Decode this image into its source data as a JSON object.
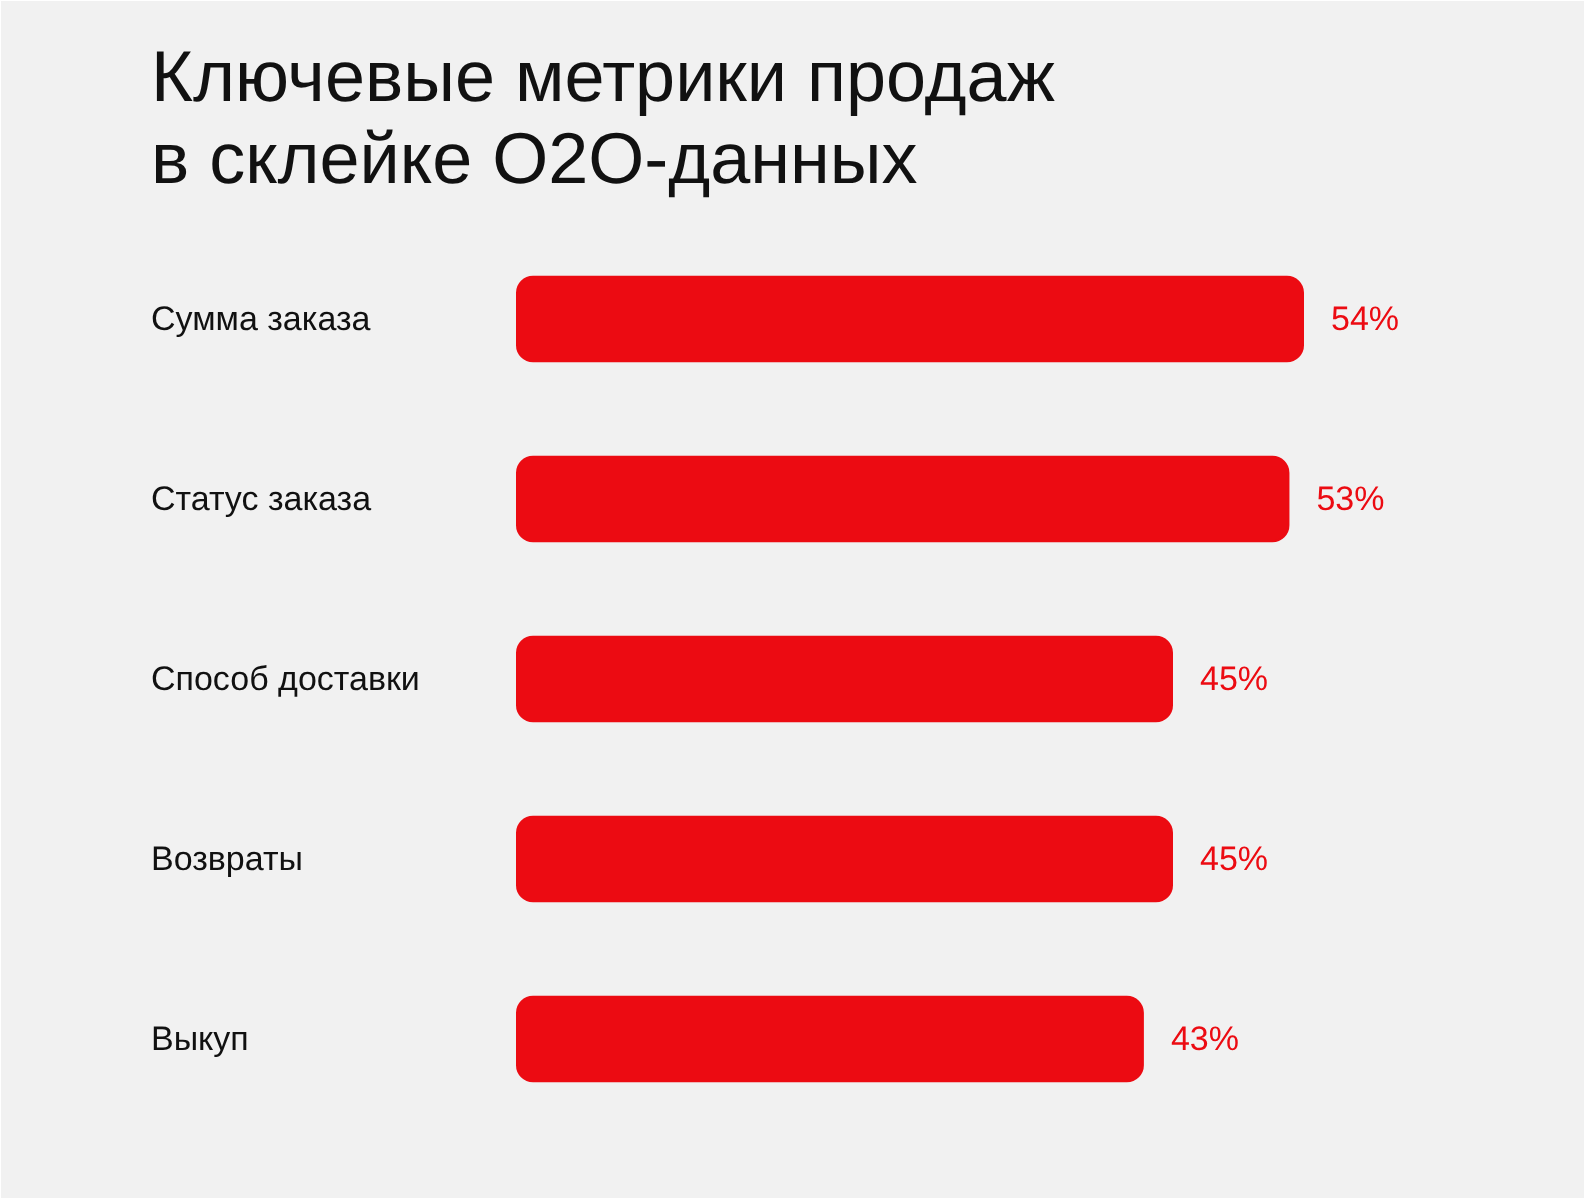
{
  "chart_data": {
    "type": "bar",
    "orientation": "horizontal",
    "title": "Ключевые метрики продаж\nв склейке O2O-данных",
    "categories": [
      "Сумма заказа",
      "Статус заказа",
      "Способ доставки",
      "Возвраты",
      "Выкуп"
    ],
    "values": [
      54,
      53,
      45,
      45,
      43
    ],
    "value_labels": [
      "54%",
      "53%",
      "45%",
      "45%",
      "43%"
    ],
    "color": "#ec0b12",
    "tick_labels": false
  }
}
